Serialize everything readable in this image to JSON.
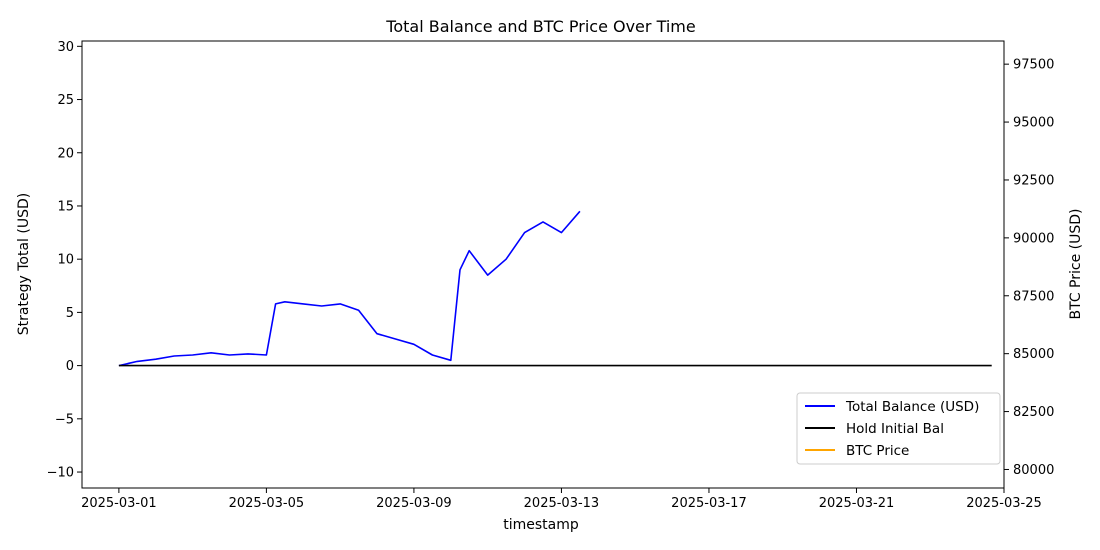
{
  "chart_data": {
    "type": "line",
    "title": "Total Balance and BTC Price Over Time",
    "xlabel": "timestamp",
    "ylabel_left": "Strategy Total (USD)",
    "ylabel_right": "BTC Price (USD)",
    "xlim": [
      "2025-02-28",
      "2025-03-25"
    ],
    "ylim_left": [
      -11.5,
      30.5
    ],
    "ylim_right": [
      79200,
      98500
    ],
    "x_ticks": [
      "2025-03-01",
      "2025-03-05",
      "2025-03-09",
      "2025-03-13",
      "2025-03-17",
      "2025-03-21",
      "2025-03-25"
    ],
    "y_ticks_left": [
      -10,
      -5,
      0,
      5,
      10,
      15,
      20,
      25,
      30
    ],
    "y_ticks_right": [
      80000,
      82500,
      85000,
      87500,
      90000,
      92500,
      95000,
      97500
    ],
    "grid": false,
    "legend_position": "lower-right",
    "series": [
      {
        "name": "Total Balance (USD)",
        "axis": "left",
        "color": "#0000ff",
        "points": [
          [
            "2025-03-01",
            0.0
          ],
          [
            "2025-03-01T12:00",
            0.4
          ],
          [
            "2025-03-02",
            0.6
          ],
          [
            "2025-03-02T12:00",
            0.9
          ],
          [
            "2025-03-03",
            1.0
          ],
          [
            "2025-03-03T12:00",
            1.2
          ],
          [
            "2025-03-04",
            1.0
          ],
          [
            "2025-03-04T12:00",
            1.1
          ],
          [
            "2025-03-05",
            1.0
          ],
          [
            "2025-03-05T06:00",
            5.8
          ],
          [
            "2025-03-05T12:00",
            6.0
          ],
          [
            "2025-03-06",
            5.8
          ],
          [
            "2025-03-06T12:00",
            5.6
          ],
          [
            "2025-03-07",
            5.8
          ],
          [
            "2025-03-07T12:00",
            5.2
          ],
          [
            "2025-03-08",
            3.0
          ],
          [
            "2025-03-08T12:00",
            2.5
          ],
          [
            "2025-03-09",
            2.0
          ],
          [
            "2025-03-09T12:00",
            1.0
          ],
          [
            "2025-03-10",
            0.5
          ],
          [
            "2025-03-10T06:00",
            9.0
          ],
          [
            "2025-03-10T12:00",
            10.8
          ],
          [
            "2025-03-11",
            8.5
          ],
          [
            "2025-03-11T12:00",
            10.0
          ],
          [
            "2025-03-12",
            12.5
          ],
          [
            "2025-03-12T12:00",
            13.5
          ],
          [
            "2025-03-13",
            12.5
          ],
          [
            "2025-03-13T12:00",
            14.5
          ]
        ]
      },
      {
        "name": "Hold Initial Bal",
        "axis": "left",
        "color": "#000000",
        "points": [
          [
            "2025-03-01",
            0
          ],
          [
            "2025-03-24T16:00",
            0
          ]
        ]
      },
      {
        "name": "BTC Price",
        "axis": "right",
        "color": "#ffa500",
        "points": []
      }
    ]
  }
}
